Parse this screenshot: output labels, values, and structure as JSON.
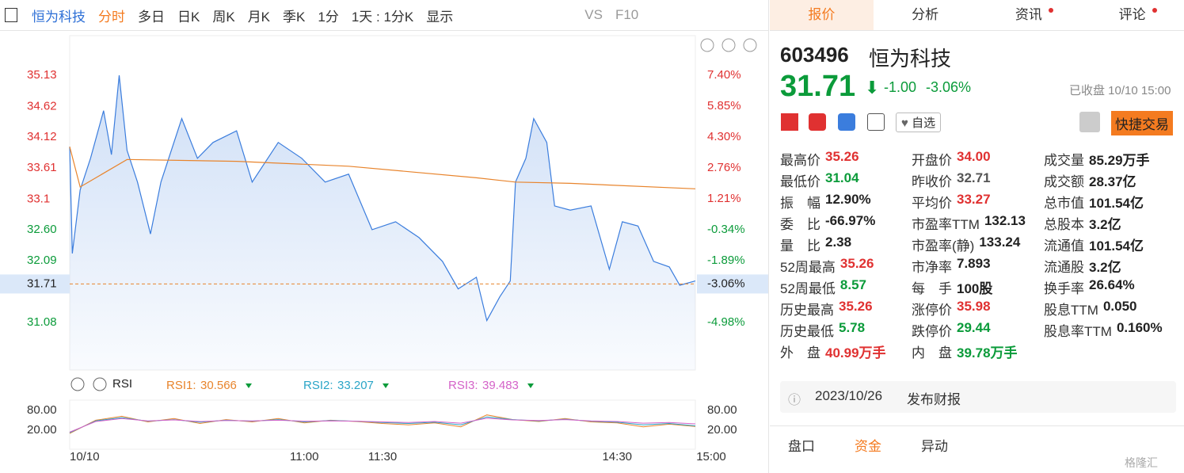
{
  "toolbar": {
    "stock": "恒为科技",
    "tabs": [
      "分时",
      "多日",
      "日K",
      "周K",
      "月K",
      "季K"
    ],
    "period": "1分",
    "range": "1天 : 1分K",
    "display": "显示",
    "vs": "VS",
    "f10": "F10"
  },
  "chart_data": {
    "type": "line",
    "base": 32.71,
    "ylim": [
      30.3,
      35.78
    ],
    "y2lim": [
      -7.37,
      9.39
    ],
    "yticks": [
      35.13,
      34.62,
      34.12,
      33.61,
      33.1,
      {
        "value": 32.6,
        "label": "32.60"
      },
      32.09,
      31.08
    ],
    "y2ticks": [
      {
        "value": 7.4,
        "label": "7.40%"
      },
      {
        "value": 5.85,
        "label": "5.85%"
      },
      {
        "value": 4.3,
        "label": "4.30%"
      },
      {
        "value": 2.76,
        "label": "2.76%"
      },
      {
        "value": 1.21,
        "label": "1.21%"
      },
      {
        "value": -0.34,
        "label": "-0.34%"
      },
      {
        "value": -1.89,
        "label": "-1.89%"
      },
      {
        "value": -4.98,
        "label": "-4.98%"
      }
    ],
    "last": 31.71,
    "last_pct": {
      "value": -3.06,
      "label": "-3.06%"
    },
    "xlim": [
      0,
      240
    ],
    "xticks": [
      {
        "value": 0,
        "label": "10/10"
      },
      {
        "value": 90,
        "label": "11:00"
      },
      {
        "value": 120,
        "label": "11:30"
      },
      {
        "value": 210,
        "label": "14:30"
      },
      {
        "value": 240,
        "label": "15:00"
      }
    ],
    "series": [
      {
        "name": "price",
        "color": "#3b7ddd",
        "x": [
          0,
          1,
          4,
          8,
          13,
          16,
          19,
          22,
          26,
          31,
          35,
          43,
          49,
          55,
          64,
          70,
          80,
          89,
          98,
          107,
          116,
          125,
          134,
          143,
          149,
          156,
          160,
          165,
          169,
          171,
          175,
          178,
          183,
          186,
          192,
          200,
          207,
          212,
          218,
          224,
          230,
          234,
          240
        ],
        "values": [
          33.96,
          32.21,
          33.25,
          33.77,
          34.55,
          33.83,
          35.13,
          33.9,
          33.38,
          32.53,
          33.38,
          34.42,
          33.77,
          34.03,
          34.22,
          33.38,
          34.03,
          33.77,
          33.38,
          33.51,
          32.6,
          32.73,
          32.47,
          32.08,
          31.63,
          31.82,
          31.11,
          31.5,
          31.76,
          33.38,
          33.77,
          34.42,
          34.03,
          32.99,
          32.92,
          32.99,
          31.95,
          32.73,
          32.66,
          32.08,
          31.99,
          31.69,
          31.76
        ]
      },
      {
        "name": "average",
        "color": "#e8842c",
        "x": [
          0,
          4,
          22,
          64,
          107,
          156,
          171,
          192,
          240
        ],
        "values": [
          33.96,
          33.3,
          33.75,
          33.72,
          33.64,
          33.45,
          33.38,
          33.36,
          33.27
        ]
      }
    ]
  },
  "rsi": {
    "title": "RSI",
    "ylim": [
      -38,
      111
    ],
    "yticks": [
      {
        "value": 80,
        "label": "80.00"
      },
      {
        "value": 20,
        "label": "20.00"
      }
    ],
    "x": [
      0,
      10,
      20,
      30,
      40,
      50,
      60,
      70,
      80,
      90,
      100,
      110,
      120,
      130,
      140,
      150,
      160,
      170,
      180,
      190,
      200,
      210,
      220,
      230,
      240
    ],
    "series": [
      {
        "name": "RSI1:",
        "label": "30.566",
        "color": "#e8842c",
        "values": [
          10,
          50,
          62,
          45,
          55,
          40,
          52,
          45,
          55,
          42,
          50,
          46,
          40,
          36,
          42,
          30,
          66,
          52,
          46,
          55,
          45,
          42,
          30,
          38,
          31
        ]
      },
      {
        "name": "RSI2:",
        "label": "33.207",
        "color": "#2aa5c7",
        "values": [
          12,
          48,
          58,
          47,
          52,
          44,
          50,
          47,
          52,
          45,
          49,
          47,
          43,
          40,
          44,
          36,
          60,
          52,
          48,
          53,
          47,
          44,
          36,
          40,
          33
        ]
      },
      {
        "name": "RSI3:",
        "label": "39.483",
        "color": "#d463c8",
        "values": [
          14,
          46,
          55,
          48,
          51,
          46,
          49,
          48,
          50,
          47,
          48,
          47,
          45,
          43,
          46,
          41,
          56,
          51,
          49,
          52,
          48,
          46,
          41,
          43,
          39
        ]
      }
    ]
  },
  "panel": {
    "tabs": [
      "报价",
      "分析",
      "资讯",
      "评论"
    ],
    "code": "603496",
    "name": "恒为科技",
    "price": "31.71",
    "change": "-1.00",
    "pct": "-3.06%",
    "status": "已收盘 10/10 15:00",
    "watch": "自选",
    "trade": "快捷交易",
    "stats": [
      [
        [
          "最高价",
          "35.26",
          "#e03131"
        ],
        [
          "开盘价",
          "34.00",
          "#e03131"
        ],
        [
          "成交量",
          "85.29万手",
          "#222"
        ]
      ],
      [
        [
          "最低价",
          "31.04",
          "#0b9b3a"
        ],
        [
          "昨收价",
          "32.71",
          "#555"
        ],
        [
          "成交额",
          "28.37亿",
          "#222"
        ]
      ],
      [
        [
          "振　幅",
          "12.90%",
          "#222"
        ],
        [
          "平均价",
          "33.27",
          "#e03131"
        ],
        [
          "总市值",
          "101.54亿",
          "#222"
        ]
      ],
      [
        [
          "委　比",
          "-66.97%",
          "#222"
        ],
        [
          "市盈率TTM",
          "132.13",
          "#222"
        ],
        [
          "总股本",
          "3.2亿",
          "#222"
        ]
      ],
      [
        [
          "量　比",
          "2.38",
          "#222"
        ],
        [
          "市盈率(静)",
          "133.24",
          "#222"
        ],
        [
          "流通值",
          "101.54亿",
          "#222"
        ]
      ],
      [
        [
          "52周最高",
          "35.26",
          "#e03131"
        ],
        [
          "市净率",
          "7.893",
          "#222"
        ],
        [
          "流通股",
          "3.2亿",
          "#222"
        ]
      ],
      [
        [
          "52周最低",
          "8.57",
          "#0b9b3a"
        ],
        [
          "每　手",
          "100股",
          "#222"
        ],
        [
          "换手率",
          "26.64%",
          "#222"
        ]
      ],
      [
        [
          "历史最高",
          "35.26",
          "#e03131"
        ],
        [
          "涨停价",
          "35.98",
          "#e03131"
        ],
        [
          "股息TTM",
          "0.050",
          "#222"
        ]
      ],
      [
        [
          "历史最低",
          "5.78",
          "#0b9b3a"
        ],
        [
          "跌停价",
          "29.44",
          "#0b9b3a"
        ],
        [
          "股息率TTM",
          "0.160%",
          "#222"
        ]
      ],
      [
        [
          "外　盘",
          "40.99万手",
          "#e03131"
        ],
        [
          "内　盘",
          "39.78万手",
          "#0b9b3a"
        ]
      ]
    ],
    "event_date": "2023/10/26",
    "event": "发布财报",
    "bottom_tabs": [
      "盘口",
      "资金",
      "异动"
    ],
    "watermark": "格隆汇"
  }
}
